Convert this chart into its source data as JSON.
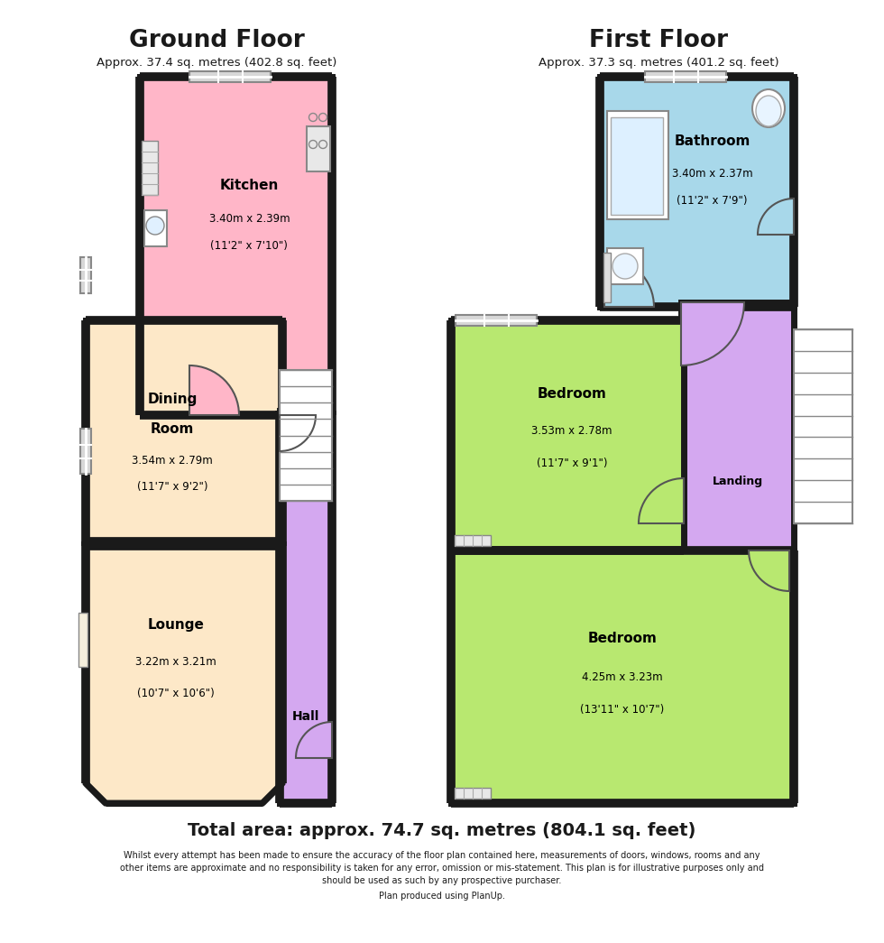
{
  "bg_color": "#ffffff",
  "wall_color": "#1a1a1a",
  "title_gf": "Ground Floor",
  "subtitle_gf": "Approx. 37.4 sq. metres (402.8 sq. feet)",
  "title_ff": "First Floor",
  "subtitle_ff": "Approx. 37.3 sq. metres (401.2 sq. feet)",
  "total_area": "Total area: approx. 74.7 sq. metres (804.1 sq. feet)",
  "disclaimer_1": "Whilst every attempt has been made to ensure the accuracy of the floor plan contained here, measurements of doors, windows, rooms and any",
  "disclaimer_2": "other items are approximate and no responsibility is taken for any error, omission or mis-statement. This plan is for illustrative purposes only and",
  "disclaimer_3": "should be used as such by any prospective purchaser.",
  "planup": "Plan produced using PlanUp.",
  "kitchen_color": "#ffb6c8",
  "dining_color": "#fde8c8",
  "lounge_color": "#fde8c8",
  "hall_color": "#d4a8f0",
  "landing_color": "#d4a8f0",
  "bathroom_color": "#a8d8ea",
  "bedroom1_color": "#b8e870",
  "bedroom2_color": "#b8e870",
  "window_color": "#d8d8d8",
  "stair_color": "#f0f0f0",
  "fixture_color": "#e8e8e8"
}
